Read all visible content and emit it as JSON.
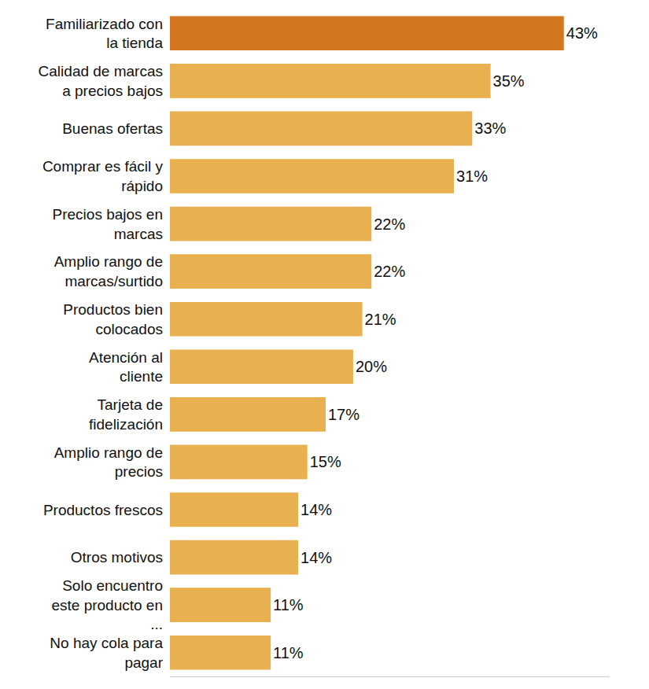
{
  "chart_data": {
    "type": "bar",
    "orientation": "horizontal",
    "categories": [
      "Familiarizado con la tienda",
      "Calidad de marcas a precios bajos",
      "Buenas ofertas",
      "Comprar es fácil y rápido",
      "Precios bajos en marcas",
      "Amplio rango de marcas/surtido",
      "Productos bien colocados",
      "Atención al cliente",
      "Tarjeta de fidelización",
      "Amplio rango de precios",
      "Productos frescos",
      "Otros motivos",
      "Solo encuentro este producto en ...",
      "No hay cola para pagar"
    ],
    "values": [
      43,
      35,
      33,
      31,
      22,
      22,
      21,
      20,
      17,
      15,
      14,
      14,
      11,
      11
    ],
    "value_labels": [
      "43%",
      "35%",
      "33%",
      "31%",
      "22%",
      "22%",
      "21%",
      "20%",
      "17%",
      "15%",
      "14%",
      "14%",
      "11%",
      "11%"
    ],
    "colors": [
      "#d2761f",
      "#e8b04f",
      "#e8b04f",
      "#e8b04f",
      "#e8b04f",
      "#e8b04f",
      "#e8b04f",
      "#e8b04f",
      "#e8b04f",
      "#e8b04f",
      "#e8b04f",
      "#e8b04f",
      "#e8b04f",
      "#e8b04f"
    ],
    "xlim": [
      0,
      48
    ],
    "xticks": [],
    "data_labels": true,
    "tick_labels": "y",
    "grid": false
  }
}
